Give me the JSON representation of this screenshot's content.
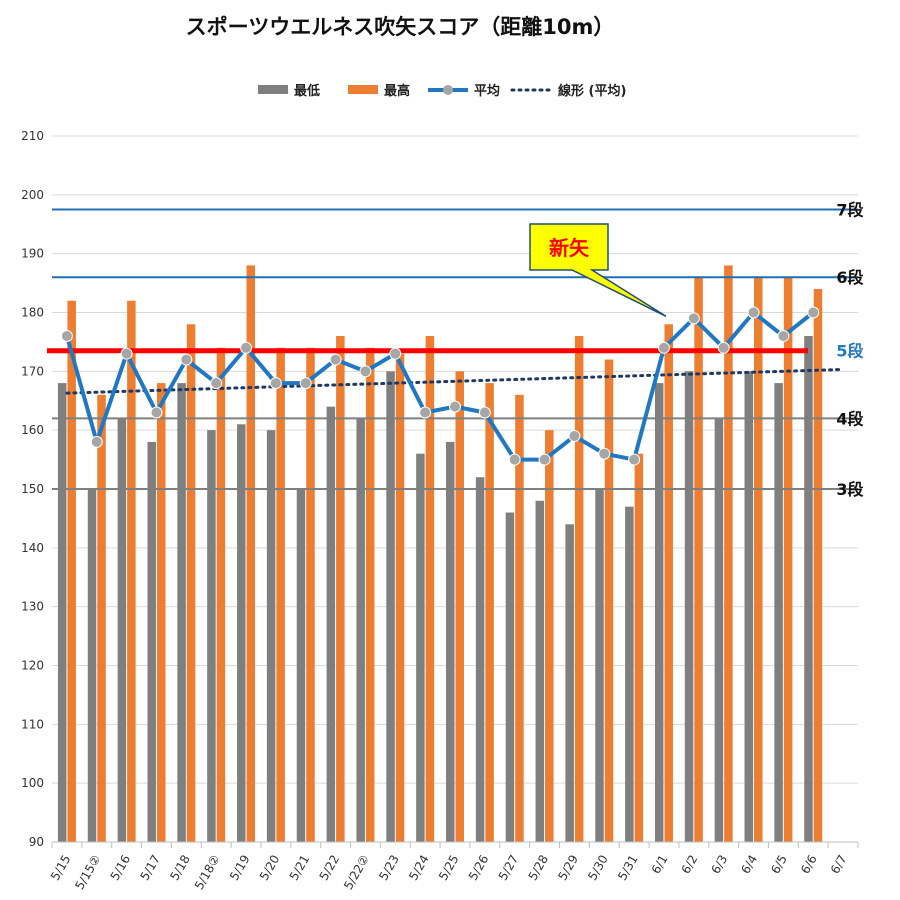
{
  "chart_data": {
    "type": "bar",
    "title": "スポーツウエルネス吹矢スコア（距離10m）",
    "categories": [
      "5/15",
      "5/15②",
      "5/16",
      "5/17",
      "5/18",
      "5/18②",
      "5/19",
      "5/20",
      "5/21",
      "5/22",
      "5/22②",
      "5/23",
      "5/24",
      "5/25",
      "5/26",
      "5/27",
      "5/28",
      "5/29",
      "5/30",
      "5/31",
      "6/1",
      "6/2",
      "6/3",
      "6/4",
      "6/5",
      "6/6",
      "6/7"
    ],
    "series": [
      {
        "name": "最低",
        "type": "bar",
        "color": "#7f7f7f",
        "values": [
          168,
          150,
          162,
          158,
          168,
          160,
          161,
          160,
          150,
          164,
          162,
          170,
          156,
          158,
          152,
          146,
          148,
          144,
          150,
          147,
          168,
          170,
          162,
          170,
          168,
          176,
          null
        ]
      },
      {
        "name": "最高",
        "type": "bar",
        "color": "#ed7d31",
        "values": [
          182,
          166,
          182,
          168,
          178,
          174,
          188,
          174,
          174,
          176,
          174,
          173,
          176,
          170,
          168,
          166,
          160,
          176,
          172,
          156,
          178,
          186,
          188,
          186,
          186,
          184,
          null
        ]
      },
      {
        "name": "平均",
        "type": "line",
        "color": "#1f78c1",
        "marker_color": "#a6a6a6",
        "values": [
          176,
          158,
          173,
          163,
          172,
          168,
          174,
          168,
          168,
          172,
          170,
          173,
          163,
          164,
          163,
          155,
          155,
          159,
          156,
          155,
          174,
          179,
          174,
          180,
          176,
          180,
          null
        ]
      },
      {
        "name": "線形 (平均)",
        "type": "trendline",
        "color": "#1f3864",
        "start": 166.3,
        "end": 170.3
      }
    ],
    "ylim": [
      90,
      210
    ],
    "yticks": [
      90,
      100,
      110,
      120,
      130,
      140,
      150,
      160,
      170,
      180,
      190,
      200,
      210
    ],
    "grid": true,
    "legend_position": "top",
    "reference_lines": [
      {
        "label": "7段",
        "value": 197.5,
        "color": "#1f6fb5",
        "label_color": "#111111"
      },
      {
        "label": "6段",
        "value": 186,
        "color": "#1f6fb5",
        "label_color": "#111111"
      },
      {
        "label": "5段",
        "value": 173.5,
        "color": "#ff0000",
        "label_color": "#1f78c1"
      },
      {
        "label": "4段",
        "value": 162,
        "color": "#7f7f7f",
        "label_color": "#111111"
      },
      {
        "label": "3段",
        "value": 150,
        "color": "#7f7f7f",
        "label_color": "#111111"
      }
    ],
    "annotation": {
      "text": "新矢",
      "target_category": "6/1",
      "target_value": 178
    }
  }
}
